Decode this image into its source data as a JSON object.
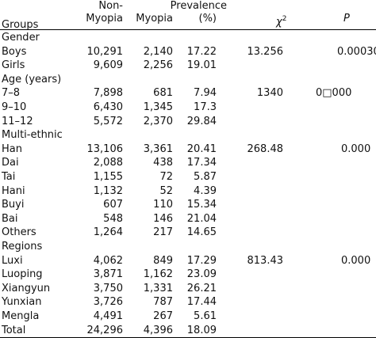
{
  "header": {
    "groups": "Groups",
    "non_myopia": [
      "Non-",
      "Myopia"
    ],
    "myopia": "Myopia",
    "prevalence": [
      "Prevalence",
      "(%)"
    ],
    "chi": "χ",
    "chi_sup": "2",
    "p": "P"
  },
  "rows": [
    [
      "Gender"
    ],
    [
      "Boys",
      "10,291",
      "2,140",
      "17.22",
      "13.256",
      "0.00030"
    ],
    [
      "Girls",
      "9,609",
      "2,256",
      "19.01"
    ],
    [
      "Age (years)"
    ],
    [
      "7–8",
      "7,898",
      "681",
      "7.94",
      "1340",
      "0□000"
    ],
    [
      "9–10",
      "6,430",
      "1,345",
      "17.3"
    ],
    [
      "11–12",
      "5,572",
      "2,370",
      "29.84"
    ],
    [
      "Multi-ethnic"
    ],
    [
      "Han",
      "13,106",
      "3,361",
      "20.41",
      "268.48",
      "0.000"
    ],
    [
      "Dai",
      "2,088",
      "438",
      "17.34"
    ],
    [
      "Tai",
      "1,155",
      "72",
      "5.87"
    ],
    [
      "Hani",
      "1,132",
      "52",
      "4.39"
    ],
    [
      "Buyi",
      "607",
      "110",
      "15.34"
    ],
    [
      "Bai",
      "548",
      "146",
      "21.04"
    ],
    [
      "Others",
      "1,264",
      "217",
      "14.65"
    ],
    [
      "Regions"
    ],
    [
      "Luxi",
      "4,062",
      "849",
      "17.29",
      "813.43",
      "0.000"
    ],
    [
      "Luoping",
      "3,871",
      "1,162",
      "23.09"
    ],
    [
      "Xiangyun",
      "3,750",
      "1,331",
      "26.21"
    ],
    [
      "Yunxian",
      "3,726",
      "787",
      "17.44"
    ],
    [
      "Mengla",
      "4,491",
      "267",
      "5.61"
    ],
    [
      "Total",
      "24,296",
      "4,396",
      "18.09"
    ]
  ]
}
